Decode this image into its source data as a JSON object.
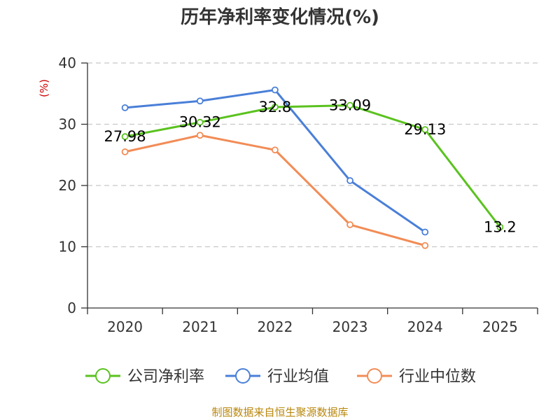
{
  "chart_data": {
    "type": "line",
    "title": "历年净利率变化情况(%)",
    "ylabel": "(%)",
    "ylim": [
      0,
      40
    ],
    "yticks": [
      0,
      10,
      20,
      30,
      40
    ],
    "categories": [
      "2020",
      "2021",
      "2022",
      "2023",
      "2024",
      "2025"
    ],
    "grid": true,
    "legend_position": "bottom",
    "series": [
      {
        "name": "公司净利率",
        "color": "#5ac21e",
        "values": [
          27.98,
          30.32,
          32.8,
          33.09,
          29.13,
          13.2
        ],
        "labels": [
          "27.98",
          "30.32",
          "32.8",
          "33.09",
          "29.13",
          "13.2"
        ]
      },
      {
        "name": "行业均值",
        "color": "#4a7fd8",
        "values": [
          32.7,
          33.8,
          35.6,
          20.8,
          12.4,
          null
        ],
        "labels": null
      },
      {
        "name": "行业中位数",
        "color": "#f28c56",
        "values": [
          25.5,
          28.2,
          25.8,
          13.6,
          10.2,
          null
        ],
        "labels": null
      }
    ],
    "source": "制图数据来自恒生聚源数据库"
  }
}
